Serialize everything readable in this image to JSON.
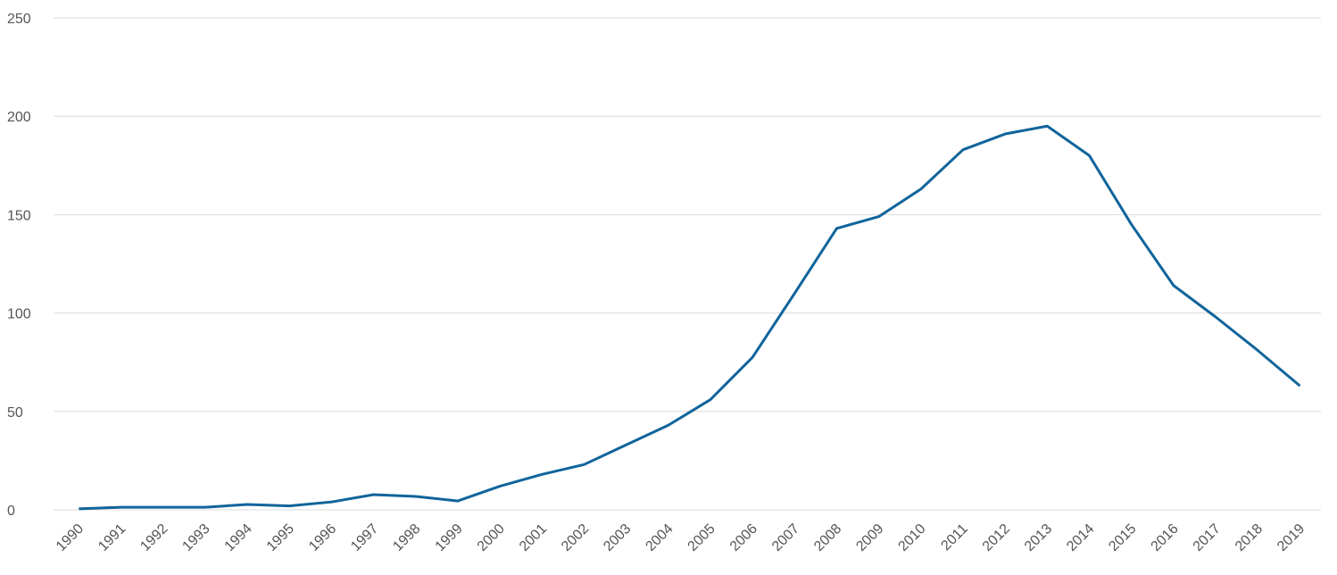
{
  "chart_data": {
    "type": "line",
    "x": [
      1990,
      1991,
      1992,
      1993,
      1994,
      1995,
      1996,
      1997,
      1998,
      1999,
      2000,
      2001,
      2002,
      2003,
      2004,
      2005,
      2006,
      2007,
      2008,
      2009,
      2010,
      2011,
      2012,
      2013,
      2014,
      2015,
      2016,
      2017,
      2018,
      2019
    ],
    "series": [
      {
        "color": "#10649b",
        "values": [
          0.5,
          1.3,
          1.3,
          1.3,
          2.7,
          2,
          4,
          7.7,
          6.8,
          4.5,
          12,
          18,
          23,
          33,
          43,
          56,
          77.5,
          110,
          143,
          149,
          163,
          183,
          191,
          195,
          180,
          145,
          114,
          98,
          81,
          63
        ]
      }
    ],
    "xlim": [
      1989.4,
      2019.5
    ],
    "xticks": [
      1990,
      1991,
      1992,
      1993,
      1994,
      1995,
      1996,
      1997,
      1998,
      1999,
      2000,
      2001,
      2002,
      2003,
      2004,
      2005,
      2006,
      2007,
      2008,
      2009,
      2010,
      2011,
      2012,
      2013,
      2014,
      2015,
      2016,
      2017,
      2018,
      2019
    ],
    "ylim": [
      0,
      250
    ],
    "yticks": [
      0,
      50,
      100,
      150,
      200,
      250
    ],
    "grid": true
  }
}
